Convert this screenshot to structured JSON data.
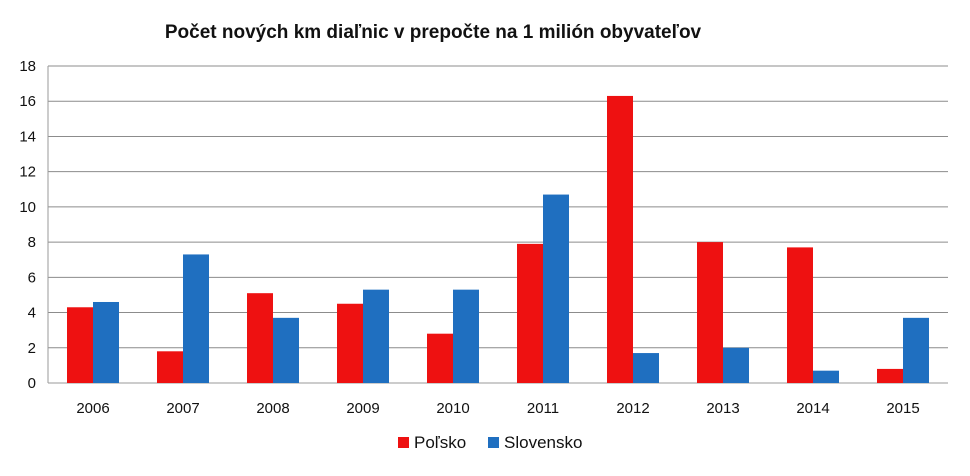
{
  "chart_data": {
    "type": "bar",
    "title": "Počet nových km diaľnic v prepočte na 1 milión obyvateľov",
    "xlabel": "",
    "ylabel": "",
    "ylim": [
      0,
      18
    ],
    "yticks": [
      0,
      2,
      4,
      6,
      8,
      10,
      12,
      14,
      16,
      18
    ],
    "categories": [
      "2006",
      "2007",
      "2008",
      "2009",
      "2010",
      "2011",
      "2012",
      "2013",
      "2014",
      "2015"
    ],
    "series": [
      {
        "name": "Poľsko",
        "color": "#ee1111",
        "values": [
          4.3,
          1.8,
          5.1,
          4.5,
          2.8,
          7.9,
          16.3,
          8.0,
          7.7,
          0.8
        ]
      },
      {
        "name": "Slovensko",
        "color": "#1f6fc0",
        "values": [
          4.6,
          7.3,
          3.7,
          5.3,
          5.3,
          10.7,
          1.7,
          2.0,
          0.7,
          3.7
        ]
      }
    ],
    "grid": true,
    "legend_position": "bottom"
  }
}
